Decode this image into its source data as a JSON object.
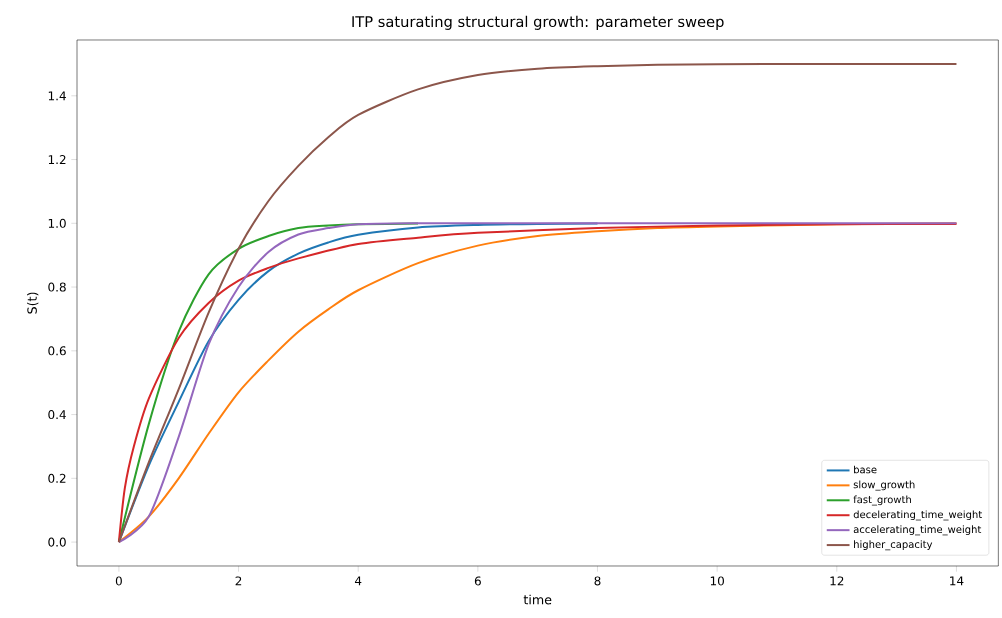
{
  "chart_data": {
    "type": "line",
    "title": "ITP saturating structural growth: parameter sweep",
    "xlabel": "time",
    "ylabel": "S(t)",
    "x": [
      0,
      0.5,
      1,
      1.5,
      2,
      2.5,
      3,
      3.5,
      4,
      5,
      6,
      7,
      8,
      9,
      10,
      12,
      14
    ],
    "series": [
      {
        "name": "base",
        "color": "#1f77b4",
        "x": [
          0,
          0.5,
          1,
          1.5,
          2,
          2.5,
          3,
          3.5,
          4,
          5,
          6,
          7,
          8
        ],
        "values": [
          0,
          0.24,
          0.44,
          0.63,
          0.76,
          0.85,
          0.905,
          0.94,
          0.964,
          0.987,
          0.995,
          0.998,
          0.999
        ]
      },
      {
        "name": "slow_growth",
        "color": "#ff7f0e",
        "values": [
          0,
          0.08,
          0.2,
          0.34,
          0.47,
          0.57,
          0.66,
          0.73,
          0.79,
          0.875,
          0.93,
          0.96,
          0.975,
          0.985,
          0.99,
          0.997,
          1.0
        ]
      },
      {
        "name": "fast_growth",
        "color": "#2ca02c",
        "x": [
          0,
          0.5,
          1,
          1.5,
          2,
          2.5,
          3,
          3.5,
          4,
          5
        ],
        "values": [
          0,
          0.37,
          0.66,
          0.84,
          0.92,
          0.96,
          0.985,
          0.993,
          0.997,
          0.999
        ]
      },
      {
        "name": "decelerating_time_weight",
        "color": "#d62728",
        "x": [
          0,
          0.1,
          0.25,
          0.5,
          1,
          1.5,
          2,
          2.5,
          3,
          4,
          5,
          6,
          8,
          10,
          12,
          14
        ],
        "values": [
          0,
          0.17,
          0.3,
          0.45,
          0.64,
          0.75,
          0.82,
          0.86,
          0.89,
          0.935,
          0.955,
          0.97,
          0.985,
          0.993,
          0.997,
          0.998
        ]
      },
      {
        "name": "accelerating_time_weight",
        "color": "#9467bd",
        "values": [
          0,
          0.08,
          0.33,
          0.62,
          0.8,
          0.91,
          0.965,
          0.985,
          0.997,
          1.0,
          1.0,
          1.0,
          1.0,
          1.0,
          1.0,
          1.0,
          1.0
        ]
      },
      {
        "name": "higher_capacity",
        "color": "#8c564b",
        "values": [
          0,
          0.25,
          0.48,
          0.72,
          0.92,
          1.07,
          1.18,
          1.27,
          1.34,
          1.42,
          1.465,
          1.485,
          1.493,
          1.497,
          1.499,
          1.5,
          1.5
        ]
      }
    ],
    "xlim": [
      -0.7,
      14.7
    ],
    "ylim": [
      -0.075,
      1.575
    ],
    "xticks": [
      0,
      2,
      4,
      6,
      8,
      10,
      12,
      14
    ],
    "yticks": [
      {
        "value": 0,
        "label": "0.0"
      },
      {
        "value": 0.2,
        "label": "0.2"
      },
      {
        "value": 0.4,
        "label": "0.4"
      },
      {
        "value": 0.6,
        "label": "0.6"
      },
      {
        "value": 0.8,
        "label": "0.8"
      },
      {
        "value": 1.0,
        "label": "1.0"
      },
      {
        "value": 1.2,
        "label": "1.2"
      },
      {
        "value": 1.4,
        "label": "1.4"
      }
    ],
    "legend": "bottom right",
    "grid": false,
    "marker": "none",
    "line_style": "solid"
  }
}
